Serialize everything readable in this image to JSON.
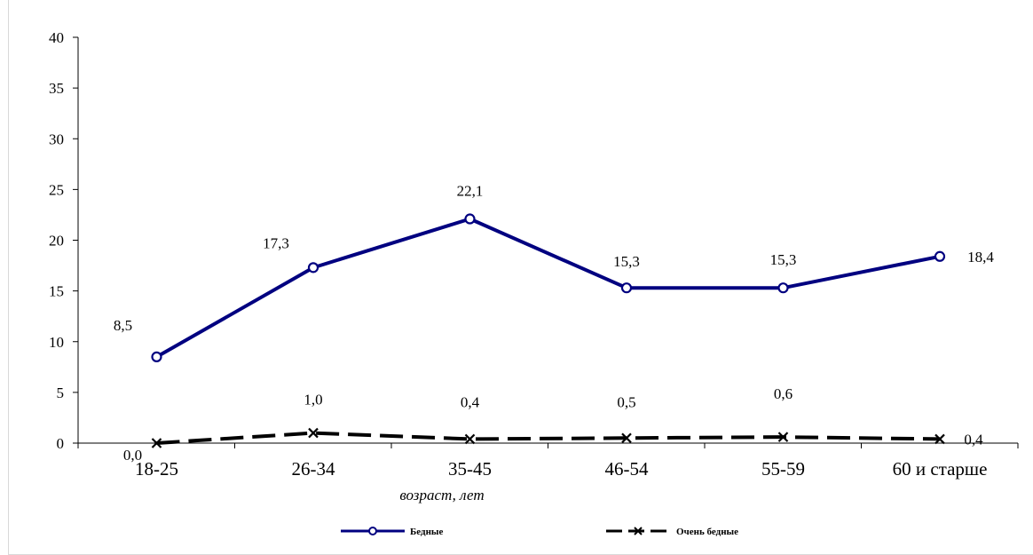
{
  "chart_data": {
    "type": "line",
    "categories": [
      "18-25",
      "26-34",
      "35-45",
      "46-54",
      "55-59",
      "60  и старше"
    ],
    "xlabel": "возраст, лет",
    "ylabel": "",
    "ylim": [
      0,
      40
    ],
    "yticks": [
      "0",
      "5",
      "10",
      "15",
      "20",
      "25",
      "30",
      "35",
      "40"
    ],
    "grid": false,
    "legend_position": "bottom",
    "series": [
      {
        "name": "Бедные",
        "values": [
          8.5,
          17.3,
          22.1,
          15.3,
          15.3,
          18.4
        ],
        "labels": [
          "8,5",
          "17,3",
          "22,1",
          "15,3",
          "15,3",
          "18,4"
        ],
        "color": "#000080",
        "marker": "circle",
        "line_style": "solid"
      },
      {
        "name": "Очень бедные",
        "values": [
          0.0,
          1.0,
          0.4,
          0.5,
          0.6,
          0.4
        ],
        "labels": [
          "0,0",
          "1,0",
          "0,4",
          "0,5",
          "0,6",
          "0,4"
        ],
        "color": "#000000",
        "marker": "x",
        "line_style": "dashed"
      }
    ]
  }
}
